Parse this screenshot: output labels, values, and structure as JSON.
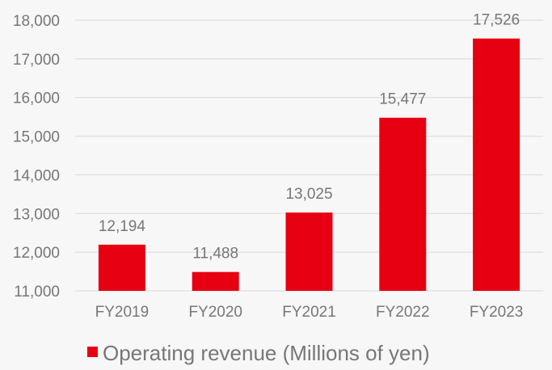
{
  "chart_data": {
    "type": "bar",
    "categories": [
      "FY2019",
      "FY2020",
      "FY2021",
      "FY2022",
      "FY2023"
    ],
    "series": [
      {
        "name": "Operating revenue (Millions of yen)",
        "values": [
          12194,
          11488,
          13025,
          15477,
          17526
        ],
        "value_labels": [
          "12,194",
          "11,488",
          "13,025",
          "15,477",
          "17,526"
        ],
        "color": "#e60012"
      }
    ],
    "title": "",
    "xlabel": "",
    "ylabel": "",
    "ylim": [
      11000,
      18000
    ],
    "yticks": [
      11000,
      12000,
      13000,
      14000,
      15000,
      16000,
      17000,
      18000
    ],
    "ytick_labels": [
      "11,000",
      "12,000",
      "13,000",
      "14,000",
      "15,000",
      "16,000",
      "17,000",
      "18,000"
    ],
    "grid": true,
    "grid_color": "#d9d9d9",
    "legend_position": "bottom"
  }
}
